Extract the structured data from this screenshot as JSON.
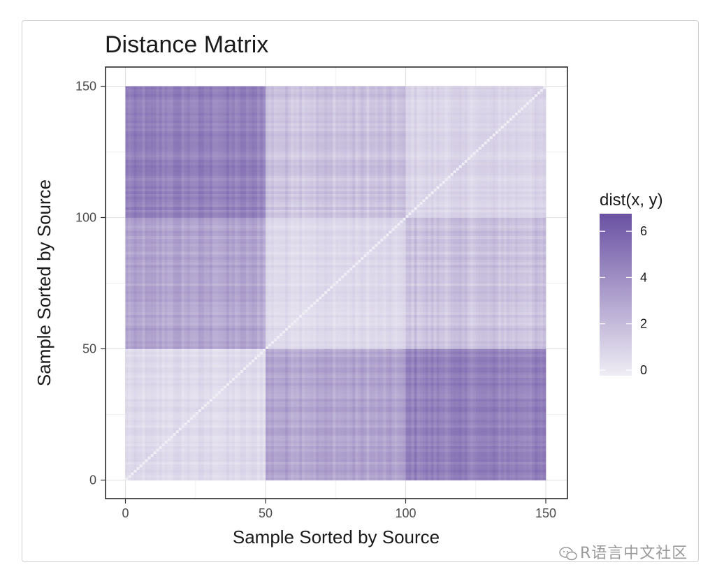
{
  "chart_data": {
    "type": "heatmap",
    "title": "Distance Matrix",
    "xlabel": "Sample Sorted by Source",
    "ylabel": "Sample Sorted by Source",
    "xlim": [
      0,
      150
    ],
    "ylim": [
      0,
      150
    ],
    "x_ticks": [
      0,
      50,
      100,
      150
    ],
    "y_ticks": [
      0,
      50,
      100,
      150
    ],
    "x_tick_labels": [
      "0",
      "50",
      "100",
      "150"
    ],
    "y_tick_labels": [
      "0",
      "50",
      "100",
      "150"
    ],
    "n_samples": 150,
    "groups": [
      {
        "from": 1,
        "to": 50
      },
      {
        "from": 51,
        "to": 100
      },
      {
        "from": 101,
        "to": 150
      }
    ],
    "block_mean_distance": [
      [
        0.8,
        3.2,
        4.8
      ],
      [
        3.2,
        0.9,
        1.9
      ],
      [
        4.8,
        1.9,
        1.1
      ]
    ],
    "legend": {
      "title": "dist(x, y)",
      "min": 0,
      "max": 7,
      "ticks": [
        0,
        2,
        4,
        6
      ],
      "tick_labels": [
        "0",
        "2",
        "4",
        "6"
      ],
      "low_color": "#efedf5",
      "high_color": "#6a51a3",
      "position": "right"
    },
    "grid": true
  },
  "watermark": {
    "icon": "wechat-icon",
    "text": "R语言中文社区"
  }
}
